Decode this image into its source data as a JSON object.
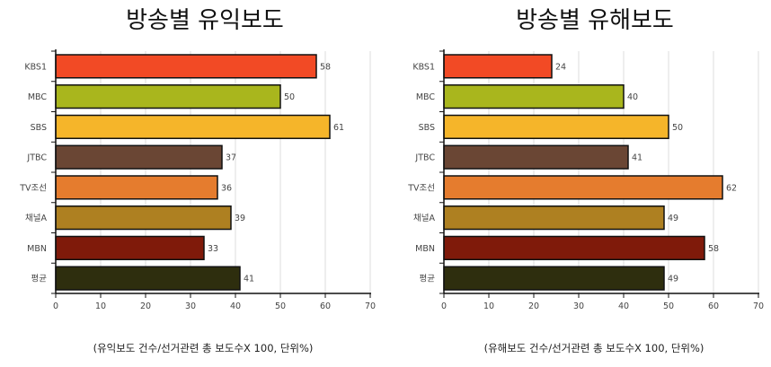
{
  "chart_data": [
    {
      "type": "bar",
      "orientation": "horizontal",
      "title": "방송별 유익보도",
      "note": "(유익보도 건수/선거관련 총 보도수X 100, 단위%)",
      "categories": [
        "KBS1",
        "MBC",
        "SBS",
        "JTBC",
        "TV조선",
        "채널A",
        "MBN",
        "평균"
      ],
      "values": [
        58,
        50,
        61,
        37,
        36,
        39,
        33,
        41
      ],
      "xlim": [
        0,
        70
      ],
      "xticks": [
        "0",
        "10",
        "20",
        "30",
        "40",
        "50",
        "60",
        "70"
      ],
      "grid": true
    },
    {
      "type": "bar",
      "orientation": "horizontal",
      "title": "방송별 유해보도",
      "note": "(유해보도 건수/선거관련 총 보도수X 100, 단위%)",
      "categories": [
        "KBS1",
        "MBC",
        "SBS",
        "JTBC",
        "TV조선",
        "채널A",
        "MBN",
        "평균"
      ],
      "values": [
        24,
        40,
        50,
        41,
        62,
        49,
        58,
        49
      ],
      "xlim": [
        0,
        70
      ],
      "xticks": [
        "0",
        "10",
        "20",
        "30",
        "40",
        "50",
        "60",
        "70"
      ],
      "grid": true
    }
  ],
  "colors": [
    "#f24a25",
    "#a9b61d",
    "#f5b52a",
    "#6a4634",
    "#e57c2e",
    "#ae8021",
    "#7f1a0a",
    "#2e2e0e"
  ]
}
